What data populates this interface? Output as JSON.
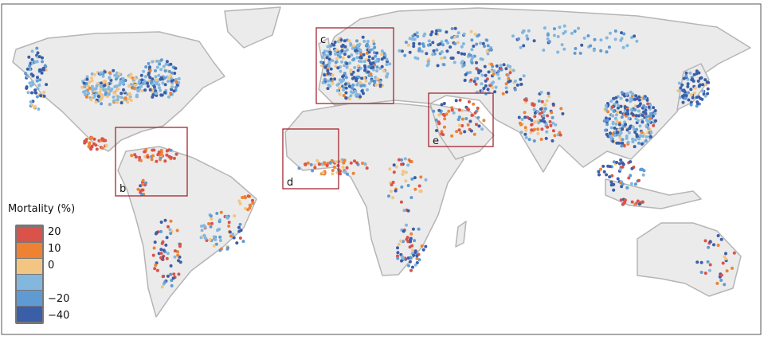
{
  "legend": {
    "title": "Mortality (%)",
    "entries": [
      {
        "label": "20",
        "color": "#d9534a"
      },
      {
        "label": "10",
        "color": "#ee8232"
      },
      {
        "label": "0",
        "color": "#f3c582"
      },
      {
        "label": "",
        "color": "#84b7dd"
      },
      {
        "label": "−20",
        "color": "#5f9bd2"
      },
      {
        "label": "−40",
        "color": "#3b5ea8"
      }
    ]
  },
  "panels": [
    {
      "label": "b"
    },
    {
      "label": "c"
    },
    {
      "label": "d"
    },
    {
      "label": "e"
    }
  ],
  "colors": {
    "land": "#ebebeb",
    "border": "#b5b5b5",
    "box": "#a3262f",
    "frame": "#555555"
  }
}
